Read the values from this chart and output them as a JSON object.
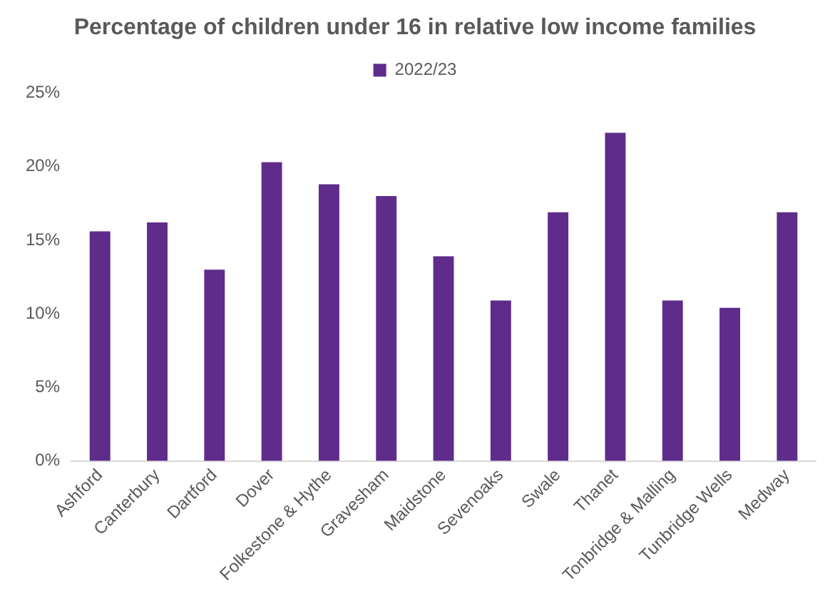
{
  "chart_data": {
    "type": "bar",
    "title": "Percentage of children under 16 in relative low income families",
    "categories": [
      "Ashford",
      "Canterbury",
      "Dartford",
      "Dover",
      "Folkestone & Hythe",
      "Gravesham",
      "Maidstone",
      "Sevenoaks",
      "Swale",
      "Thanet",
      "Tonbridge & Malling",
      "Tunbridge Wells",
      "Medway"
    ],
    "series": [
      {
        "name": "2022/23",
        "color": "#5f2c8c",
        "values": [
          15.6,
          16.2,
          13.0,
          20.3,
          18.8,
          18.0,
          13.9,
          10.9,
          16.9,
          22.3,
          10.9,
          10.4,
          16.9
        ]
      }
    ],
    "ylim": [
      0,
      25
    ],
    "yticks": [
      {
        "value": 0,
        "label": "0%"
      },
      {
        "value": 5,
        "label": "5%"
      },
      {
        "value": 10,
        "label": "10%"
      },
      {
        "value": 15,
        "label": "15%"
      },
      {
        "value": 20,
        "label": "20%"
      },
      {
        "value": 25,
        "label": "25%"
      }
    ],
    "grid": false,
    "legend": "top"
  }
}
